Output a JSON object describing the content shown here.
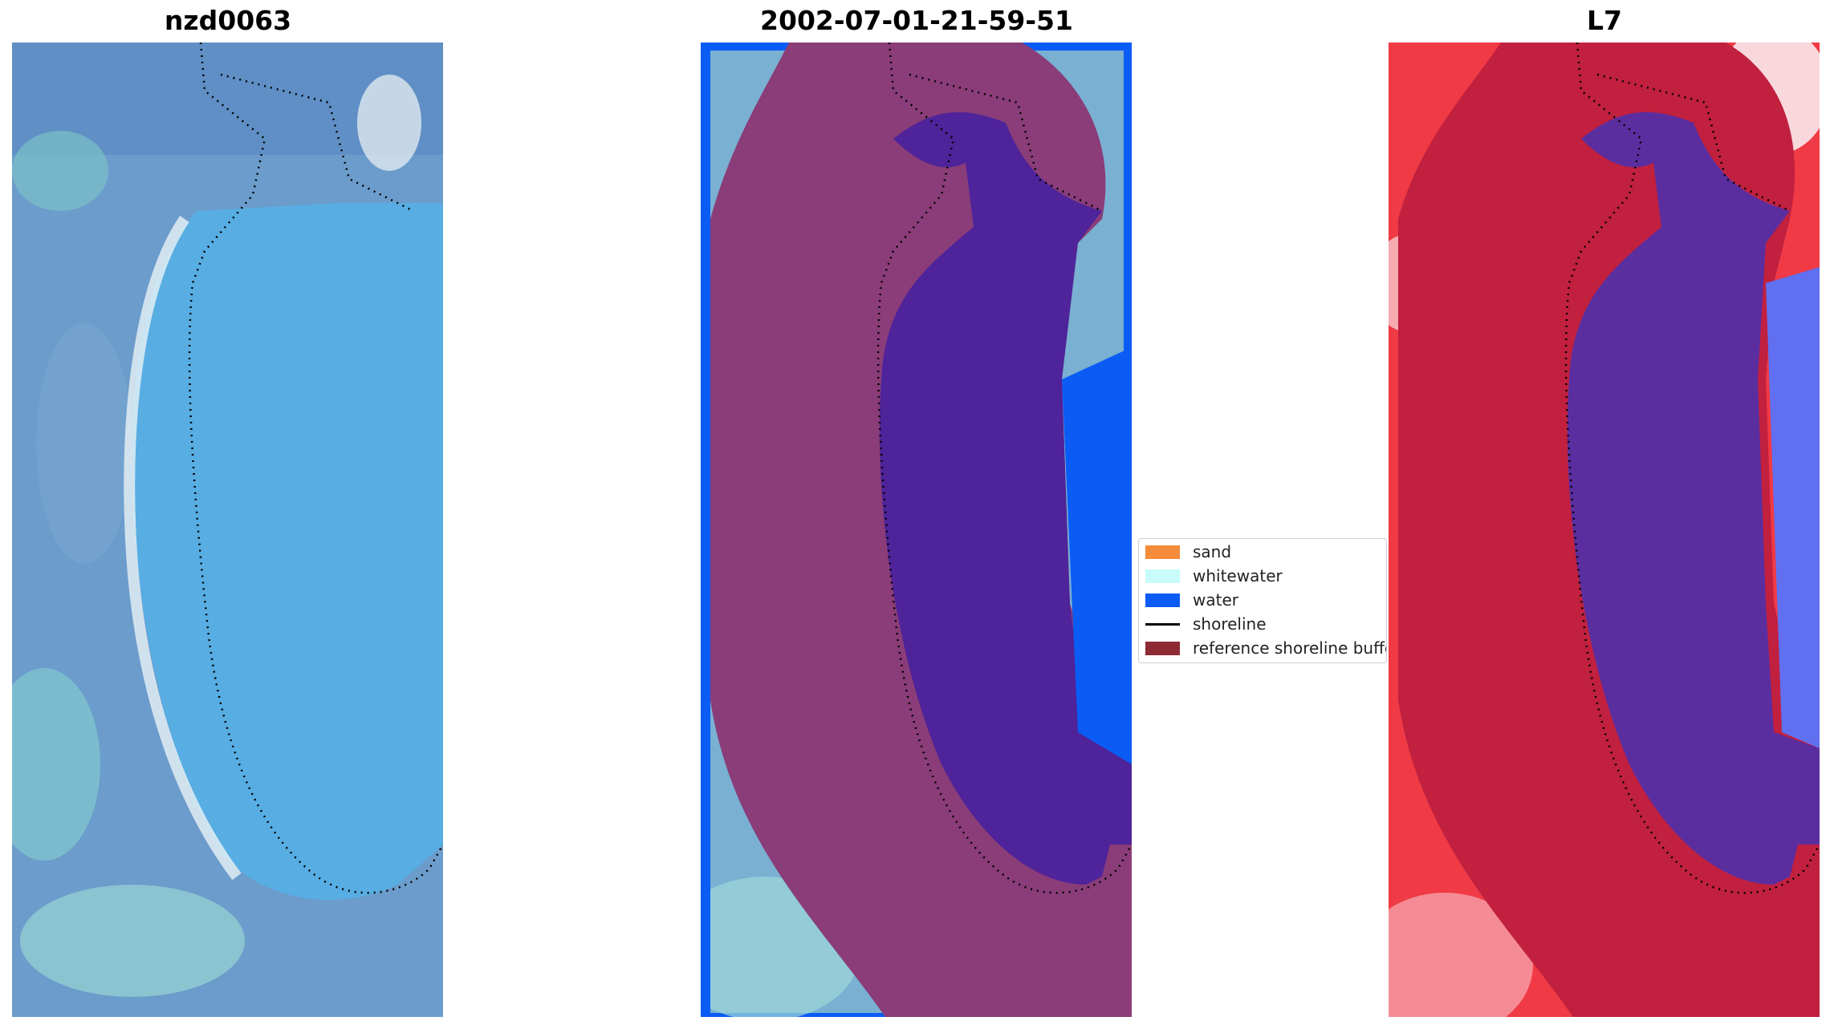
{
  "panels": [
    {
      "title": "nzd0063"
    },
    {
      "title": "2002-07-01-21-59-51"
    },
    {
      "title": "L7"
    }
  ],
  "legend": {
    "items": [
      {
        "label": "sand",
        "color": "#f58c3c",
        "kind": "patch"
      },
      {
        "label": "whitewater",
        "color": "#c8fcfa",
        "kind": "patch"
      },
      {
        "label": "water",
        "color": "#0a5cf5",
        "kind": "patch"
      },
      {
        "label": "shoreline",
        "color": "#000000",
        "kind": "line"
      },
      {
        "label": "reference shoreline buffer",
        "color": "#8f2a34",
        "kind": "patch"
      }
    ]
  },
  "colors": {
    "rgb_lagoon": "#5aaee0",
    "rgb_land": "#6fa0c8",
    "classified_buffer": "#8a3d78",
    "classified_water": "#4f2399",
    "classified_border_water": "#0a5cf5",
    "index_land": "#c1203f",
    "index_bright": "#f0303a",
    "index_water": "#5b2ea0",
    "index_blue": "#6070f0"
  }
}
